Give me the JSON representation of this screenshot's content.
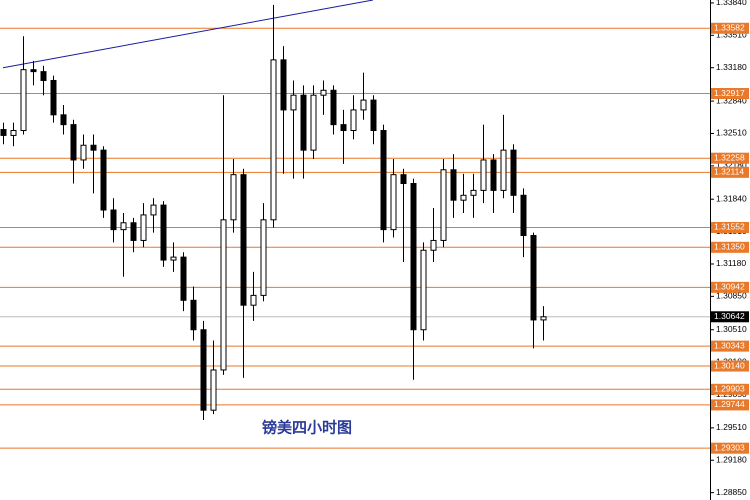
{
  "chart_data": {
    "type": "candlestick",
    "annotation": "镑美四小时图",
    "ylim": [
      1.28775,
      1.3387
    ],
    "yticks": [
      {
        "value": 1.3384,
        "label": "1.33840"
      },
      {
        "value": 1.3351,
        "label": "1.33510"
      },
      {
        "value": 1.3318,
        "label": "1.33180"
      },
      {
        "value": 1.3284,
        "label": "1.32840"
      },
      {
        "value": 1.3251,
        "label": "1.32510"
      },
      {
        "value": 1.3218,
        "label": "1.32180"
      },
      {
        "value": 1.3184,
        "label": "1.31840"
      },
      {
        "value": 1.3151,
        "label": "1.31510"
      },
      {
        "value": 1.3118,
        "label": "1.31180"
      },
      {
        "value": 1.3085,
        "label": "1.30850"
      },
      {
        "value": 1.3051,
        "label": "1.30510"
      },
      {
        "value": 1.3018,
        "label": "1.30180"
      },
      {
        "value": 1.2985,
        "label": "1.29850"
      },
      {
        "value": 1.2951,
        "label": "1.29510"
      },
      {
        "value": 1.2918,
        "label": "1.29180"
      },
      {
        "value": 1.2885,
        "label": "1.28850"
      }
    ],
    "levels": [
      1.33582,
      1.32917,
      1.32258,
      1.32114,
      1.31552,
      {
        "value": 1.3135,
        "label": "1.31350"
      },
      1.30942,
      1.30343,
      {
        "value": 1.3014,
        "label": "1.30140"
      },
      1.29903,
      1.29744,
      1.29303
    ],
    "level_color": "#e8782a",
    "current_price": 1.30642,
    "trendline": {
      "color": "#1a1aa0",
      "points": [
        [
          0,
          1.3318
        ],
        [
          37,
          1.3387
        ]
      ]
    },
    "up_color": "#ffffff",
    "down_color": "#000000",
    "candles": [
      [
        1.3255,
        1.3262,
        1.324,
        1.3249
      ],
      [
        1.3249,
        1.3262,
        1.3238,
        1.3254
      ],
      [
        1.3254,
        1.335,
        1.325,
        1.3316
      ],
      [
        1.3316,
        1.3325,
        1.33,
        1.3314
      ],
      [
        1.3314,
        1.332,
        1.329,
        1.3305
      ],
      [
        1.3305,
        1.331,
        1.3262,
        1.327
      ],
      [
        1.327,
        1.328,
        1.325,
        1.326
      ],
      [
        1.326,
        1.3265,
        1.32,
        1.3224
      ],
      [
        1.3224,
        1.325,
        1.3215,
        1.3239
      ],
      [
        1.3239,
        1.325,
        1.319,
        1.3234
      ],
      [
        1.3234,
        1.3238,
        1.3165,
        1.3173
      ],
      [
        1.3173,
        1.3185,
        1.314,
        1.3153
      ],
      [
        1.3153,
        1.317,
        1.3105,
        1.316
      ],
      [
        1.316,
        1.3165,
        1.313,
        1.3142
      ],
      [
        1.3142,
        1.318,
        1.3135,
        1.3168
      ],
      [
        1.3168,
        1.3185,
        1.315,
        1.3178
      ],
      [
        1.3178,
        1.3182,
        1.3115,
        1.3122
      ],
      [
        1.3122,
        1.314,
        1.311,
        1.3125
      ],
      [
        1.3125,
        1.313,
        1.307,
        1.3081
      ],
      [
        1.3081,
        1.3095,
        1.304,
        1.3051
      ],
      [
        1.3051,
        1.306,
        1.2959,
        1.2969
      ],
      [
        1.2969,
        1.304,
        1.2965,
        1.301
      ],
      [
        1.301,
        1.329,
        1.3005,
        1.3163
      ],
      [
        1.3163,
        1.3225,
        1.315,
        1.3209
      ],
      [
        1.3209,
        1.3215,
        1.3002,
        1.3076
      ],
      [
        1.3076,
        1.311,
        1.306,
        1.3086
      ],
      [
        1.3086,
        1.318,
        1.308,
        1.3163
      ],
      [
        1.3163,
        1.3382,
        1.3155,
        1.3326
      ],
      [
        1.3326,
        1.334,
        1.321,
        1.3275
      ],
      [
        1.3275,
        1.3305,
        1.3205,
        1.329
      ],
      [
        1.329,
        1.33,
        1.3205,
        1.3234
      ],
      [
        1.3234,
        1.33,
        1.3225,
        1.329
      ],
      [
        1.329,
        1.3305,
        1.327,
        1.3295
      ],
      [
        1.3295,
        1.33,
        1.325,
        1.326
      ],
      [
        1.326,
        1.3275,
        1.322,
        1.3254
      ],
      [
        1.3254,
        1.329,
        1.3245,
        1.3275
      ],
      [
        1.3275,
        1.3313,
        1.3265,
        1.3285
      ],
      [
        1.3285,
        1.329,
        1.324,
        1.3254
      ],
      [
        1.3254,
        1.326,
        1.314,
        1.3153
      ],
      [
        1.3153,
        1.3225,
        1.3145,
        1.3209
      ],
      [
        1.3209,
        1.3215,
        1.312,
        1.32
      ],
      [
        1.32,
        1.3205,
        1.3,
        1.3051
      ],
      [
        1.3051,
        1.314,
        1.304,
        1.3132
      ],
      [
        1.3132,
        1.3175,
        1.312,
        1.3142
      ],
      [
        1.3142,
        1.3225,
        1.3135,
        1.3214
      ],
      [
        1.3214,
        1.323,
        1.3165,
        1.3183
      ],
      [
        1.3183,
        1.321,
        1.317,
        1.3188
      ],
      [
        1.3188,
        1.321,
        1.3165,
        1.3193
      ],
      [
        1.3193,
        1.326,
        1.318,
        1.3224
      ],
      [
        1.3224,
        1.323,
        1.317,
        1.3193
      ],
      [
        1.3193,
        1.327,
        1.3185,
        1.3234
      ],
      [
        1.3234,
        1.324,
        1.317,
        1.3188
      ],
      [
        1.3188,
        1.3195,
        1.3125,
        1.3147
      ],
      [
        1.3147,
        1.315,
        1.3032,
        1.3061
      ],
      [
        1.3061,
        1.3075,
        1.304,
        1.30642
      ]
    ]
  }
}
